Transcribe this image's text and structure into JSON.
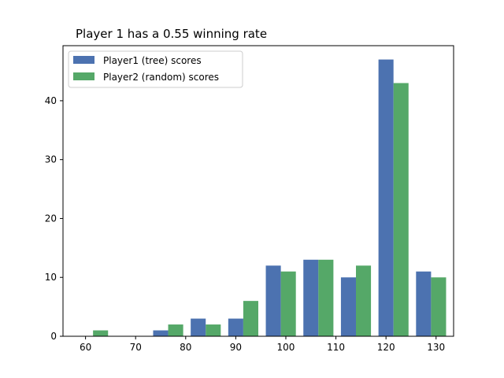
{
  "chart_data": {
    "type": "bar",
    "title": "Player 1 has a 0.55 winning rate",
    "xlabel": "",
    "ylabel": "",
    "xlim": [
      55.5,
      133.5
    ],
    "ylim": [
      0,
      49.35
    ],
    "xticks": [
      60,
      70,
      80,
      90,
      100,
      110,
      120,
      130
    ],
    "yticks": [
      0,
      10,
      20,
      30,
      40
    ],
    "grid": false,
    "legend_position": "top-left",
    "bin_width": 7.5,
    "series": [
      {
        "name": "Player1 (tree) scores",
        "color": "#4c72b0",
        "values": [
          {
            "x": 61.5,
            "y": 0
          },
          {
            "x": 69,
            "y": 0
          },
          {
            "x": 76.5,
            "y": 1
          },
          {
            "x": 84,
            "y": 3
          },
          {
            "x": 91.5,
            "y": 3
          },
          {
            "x": 99,
            "y": 12
          },
          {
            "x": 106.5,
            "y": 13
          },
          {
            "x": 114,
            "y": 10
          },
          {
            "x": 121.5,
            "y": 47
          },
          {
            "x": 129,
            "y": 11
          }
        ]
      },
      {
        "name": "Player2 (random) scores",
        "color": "#55a868",
        "values": [
          {
            "x": 61.5,
            "y": 1
          },
          {
            "x": 69,
            "y": 0
          },
          {
            "x": 76.5,
            "y": 2
          },
          {
            "x": 84,
            "y": 2
          },
          {
            "x": 91.5,
            "y": 6
          },
          {
            "x": 99,
            "y": 11
          },
          {
            "x": 106.5,
            "y": 13
          },
          {
            "x": 114,
            "y": 12
          },
          {
            "x": 121.5,
            "y": 43
          },
          {
            "x": 129,
            "y": 10
          }
        ]
      }
    ]
  }
}
